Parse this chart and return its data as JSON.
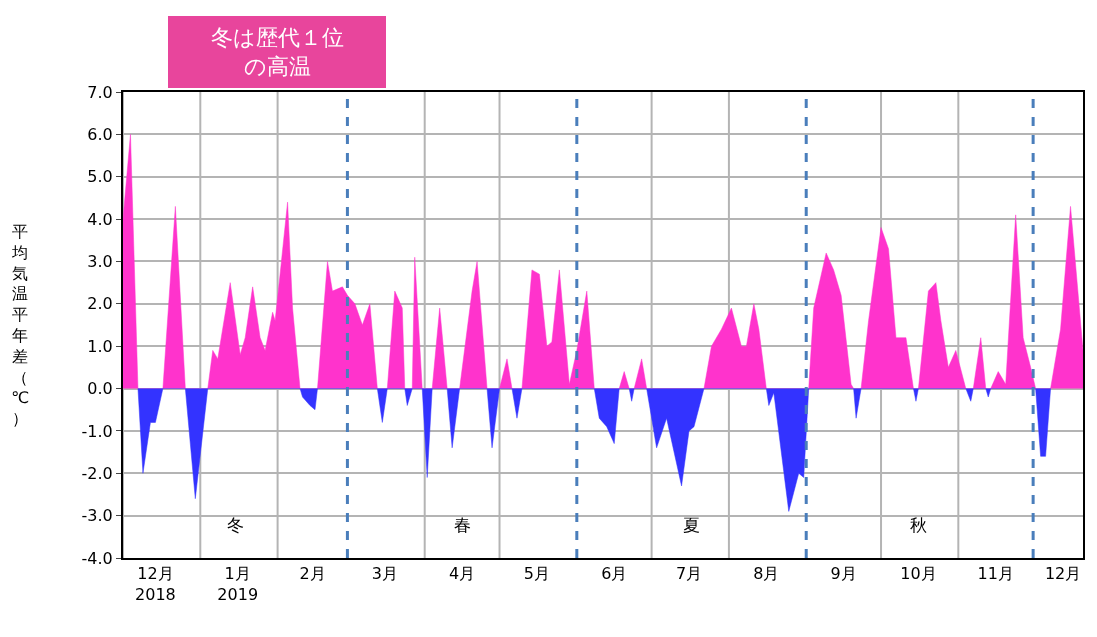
{
  "chart_data": {
    "type": "area",
    "ylabel": "平均気温平年差（℃）",
    "annotations": [
      "冬は歴代１位の高温",
      "冬",
      "春",
      "夏",
      "秋"
    ],
    "xlim": [
      "2018-12-01",
      "2019-12-21"
    ],
    "xticks": [
      {
        "value": "2018-12-01",
        "label": null
      },
      {
        "value": "2018-12-14",
        "label": "12月\n2018"
      },
      {
        "value": "2019-01-01",
        "label": null
      },
      {
        "value": "2019-01-16",
        "label": "1月\n2019"
      },
      {
        "value": "2019-02-01",
        "label": null
      },
      {
        "value": "2019-02-15",
        "label": "2月"
      },
      {
        "value": "2019-03-16",
        "label": "3月"
      },
      {
        "value": "2019-04-01",
        "label": null
      },
      {
        "value": "2019-04-16",
        "label": "4月"
      },
      {
        "value": "2019-05-01",
        "label": null
      },
      {
        "value": "2019-05-16",
        "label": "5月"
      },
      {
        "value": "2019-06-16",
        "label": "6月"
      },
      {
        "value": "2019-07-01",
        "label": null
      },
      {
        "value": "2019-07-16",
        "label": "7月"
      },
      {
        "value": "2019-08-01",
        "label": null
      },
      {
        "value": "2019-08-16",
        "label": "8月"
      },
      {
        "value": "2019-09-16",
        "label": "9月"
      },
      {
        "value": "2019-10-01",
        "label": null
      },
      {
        "value": "2019-10-16",
        "label": "10月"
      },
      {
        "value": "2019-11-01",
        "label": null
      },
      {
        "value": "2019-11-16",
        "label": "11月"
      },
      {
        "value": "2019-12-13",
        "label": "12月"
      }
    ],
    "ylim": [
      -4,
      7
    ],
    "yticks": [
      {
        "value": -4,
        "label": "-4.0"
      },
      {
        "value": -3,
        "label": "-3.0"
      },
      {
        "value": -2,
        "label": "-2.0"
      },
      {
        "value": -1,
        "label": "-1.0"
      },
      {
        "value": 0,
        "label": "0.0"
      },
      {
        "value": 1,
        "label": "1.0"
      },
      {
        "value": 2,
        "label": "2.0"
      },
      {
        "value": 3,
        "label": "3.0"
      },
      {
        "value": 4,
        "label": "4.0"
      },
      {
        "value": 5,
        "label": "5.0"
      },
      {
        "value": 6,
        "label": "6.0"
      },
      {
        "value": 7,
        "label": "7.0"
      }
    ],
    "grid": true,
    "ref_lines": [
      {
        "axis": "x",
        "value": "2019-03-01",
        "color": "#4a7ebb",
        "line_style": "dashed"
      },
      {
        "axis": "x",
        "value": "2019-06-01",
        "color": "#4a7ebb",
        "line_style": "dashed"
      },
      {
        "axis": "x",
        "value": "2019-09-01",
        "color": "#4a7ebb",
        "line_style": "dashed"
      },
      {
        "axis": "x",
        "value": "2019-12-01",
        "color": "#4a7ebb",
        "line_style": "dashed"
      }
    ],
    "series": [
      {
        "color": "#ff33cc",
        "x": [
          "2018-12-01",
          "2018-12-04",
          "2018-12-07",
          "2018-12-17",
          "2018-12-22",
          "2018-12-26",
          "2019-01-04",
          "2019-01-06",
          "2019-01-08",
          "2019-01-13",
          "2019-01-17",
          "2019-01-19",
          "2019-01-22",
          "2019-01-25",
          "2019-01-27",
          "2019-01-30",
          "2019-01-31",
          "2019-02-02",
          "2019-02-05",
          "2019-02-07",
          "2019-02-10",
          "2019-02-17",
          "2019-02-21",
          "2019-02-23",
          "2019-02-27",
          "2019-03-01",
          "2019-03-04",
          "2019-03-07",
          "2019-03-10",
          "2019-03-13",
          "2019-03-17",
          "2019-03-20",
          "2019-03-23",
          "2019-03-24",
          "2019-03-27",
          "2019-03-28",
          "2019-03-31",
          "2019-04-04",
          "2019-04-07",
          "2019-04-10",
          "2019-04-15",
          "2019-04-20",
          "2019-04-22",
          "2019-04-26",
          "2019-05-01",
          "2019-05-04",
          "2019-05-06",
          "2019-05-10",
          "2019-05-14",
          "2019-05-17",
          "2019-05-20",
          "2019-05-22",
          "2019-05-25",
          "2019-05-29",
          "2019-06-01",
          "2019-06-05",
          "2019-06-08",
          "2019-06-18",
          "2019-06-20",
          "2019-06-22",
          "2019-06-24",
          "2019-06-27",
          "2019-06-29",
          "2019-07-22",
          "2019-07-25",
          "2019-07-29",
          "2019-08-02",
          "2019-08-06",
          "2019-08-08",
          "2019-08-11",
          "2019-08-13",
          "2019-08-16",
          "2019-09-02",
          "2019-09-04",
          "2019-09-09",
          "2019-09-12",
          "2019-09-15",
          "2019-09-19",
          "2019-09-20",
          "2019-09-23",
          "2019-09-26",
          "2019-10-01",
          "2019-10-04",
          "2019-10-07",
          "2019-10-11",
          "2019-10-14",
          "2019-10-16",
          "2019-10-20",
          "2019-10-23",
          "2019-10-25",
          "2019-10-28",
          "2019-10-31",
          "2019-11-04",
          "2019-11-07",
          "2019-11-10",
          "2019-11-12",
          "2019-11-14",
          "2019-11-17",
          "2019-11-20",
          "2019-11-24",
          "2019-11-27",
          "2019-11-30",
          "2019-12-02",
          "2019-12-08",
          "2019-12-12",
          "2019-12-16",
          "2019-12-21"
        ],
        "values": [
          4.0,
          6.0,
          0,
          0,
          4.3,
          0,
          0,
          0.9,
          0.7,
          2.5,
          0.8,
          1.2,
          2.4,
          1.2,
          0.9,
          1.8,
          1.6,
          2.7,
          4.4,
          1.9,
          0,
          0,
          3.0,
          2.3,
          2.4,
          2.2,
          2.0,
          1.5,
          2.0,
          0,
          0,
          2.3,
          1.9,
          0,
          0,
          3.1,
          0,
          0,
          1.9,
          0,
          0,
          2.3,
          3.0,
          0,
          0,
          0.7,
          0,
          0,
          2.8,
          2.7,
          1.0,
          1.1,
          2.8,
          0.1,
          0.9,
          2.3,
          0,
          0,
          0.4,
          0,
          0,
          0.7,
          0,
          0,
          1.0,
          1.4,
          1.9,
          1.0,
          1.0,
          2.0,
          1.4,
          0,
          0,
          1.9,
          3.2,
          2.8,
          2.2,
          0.1,
          0,
          0,
          1.6,
          3.8,
          3.3,
          1.2,
          1.2,
          0,
          0,
          2.3,
          2.5,
          1.6,
          0.5,
          0.9,
          0,
          0,
          1.2,
          0,
          0,
          0.4,
          0.1,
          4.1,
          1.2,
          0.5,
          0,
          0,
          1.4,
          4.3,
          0.9
        ]
      },
      {
        "color": "#3333ff",
        "x": [
          "2018-12-07",
          "2018-12-09",
          "2018-12-12",
          "2018-12-14",
          "2018-12-17",
          "2018-12-26",
          "2018-12-30",
          "2019-01-04",
          "2019-02-10",
          "2019-02-11",
          "2019-02-14",
          "2019-02-16",
          "2019-02-17",
          "2019-03-13",
          "2019-03-15",
          "2019-03-17",
          "2019-03-24",
          "2019-03-25",
          "2019-03-27",
          "2019-03-31",
          "2019-04-02",
          "2019-04-04",
          "2019-04-10",
          "2019-04-12",
          "2019-04-15",
          "2019-04-26",
          "2019-04-28",
          "2019-05-01",
          "2019-05-06",
          "2019-05-08",
          "2019-05-10",
          "2019-06-08",
          "2019-06-10",
          "2019-06-13",
          "2019-06-16",
          "2019-06-18",
          "2019-06-22",
          "2019-06-23",
          "2019-06-24",
          "2019-06-29",
          "2019-07-03",
          "2019-07-07",
          "2019-07-13",
          "2019-07-16",
          "2019-07-18",
          "2019-07-22",
          "2019-08-16",
          "2019-08-17",
          "2019-08-19",
          "2019-08-25",
          "2019-08-29",
          "2019-08-31",
          "2019-09-02",
          "2019-09-20",
          "2019-09-21",
          "2019-09-23",
          "2019-10-14",
          "2019-10-15",
          "2019-10-16",
          "2019-11-04",
          "2019-11-06",
          "2019-11-07",
          "2019-11-12",
          "2019-11-13",
          "2019-11-14",
          "2019-12-02",
          "2019-12-04",
          "2019-12-06",
          "2019-12-08"
        ],
        "values": [
          0,
          -2.0,
          -0.8,
          -0.8,
          0,
          0,
          -2.6,
          0,
          0,
          -0.2,
          -0.4,
          -0.5,
          0,
          0,
          -0.8,
          0,
          0,
          -0.4,
          0,
          0,
          -2.1,
          0,
          0,
          -1.4,
          0,
          0,
          -1.4,
          0,
          0,
          -0.7,
          0,
          0,
          -0.7,
          -0.9,
          -1.3,
          0,
          0,
          -0.3,
          0,
          0,
          -1.4,
          -0.7,
          -2.3,
          -1.0,
          -0.9,
          0,
          0,
          -0.4,
          -0.1,
          -2.9,
          -2.0,
          -2.1,
          0,
          0,
          -0.7,
          0,
          0,
          -0.3,
          0,
          0,
          -0.3,
          0,
          0,
          -0.2,
          0,
          0,
          -1.6,
          -1.6,
          0
        ]
      }
    ]
  }
}
